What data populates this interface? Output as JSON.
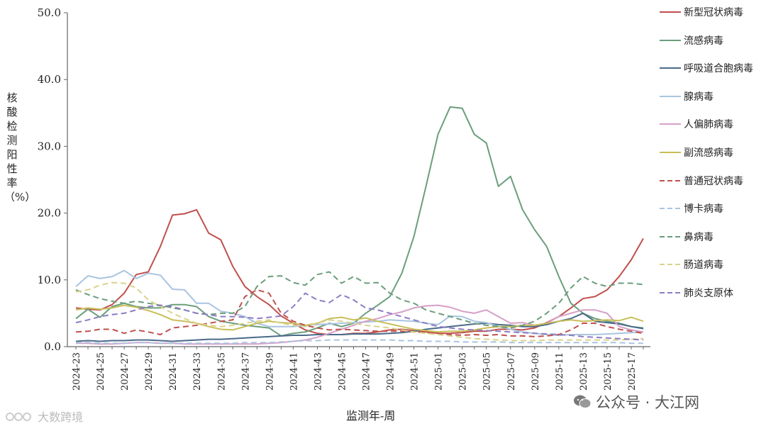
{
  "chart_data": {
    "type": "line",
    "title": "",
    "xlabel": "监测年-周",
    "ylabel": "核酸检测阳性率（%）",
    "ylim": [
      0,
      50
    ],
    "yticks": [
      "0.0",
      "10.0",
      "20.0",
      "30.0",
      "40.0",
      "50.0"
    ],
    "ytick_values": [
      0,
      10,
      20,
      30,
      40,
      50
    ],
    "xtick_labels": [
      "2024-23",
      "2024-25",
      "2024-27",
      "2024-29",
      "2024-31",
      "2024-33",
      "2024-35",
      "2024-37",
      "2024-39",
      "2024-41",
      "2024-43",
      "2024-45",
      "2024-47",
      "2024-49",
      "2024-51",
      "2025-01",
      "2025-03",
      "2025-05",
      "2025-07",
      "2025-09",
      "2025-11",
      "2025-13",
      "2025-15",
      "2025-17"
    ],
    "categories": [
      "2024-23",
      "2024-24",
      "2024-25",
      "2024-26",
      "2024-27",
      "2024-28",
      "2024-29",
      "2024-30",
      "2024-31",
      "2024-32",
      "2024-33",
      "2024-34",
      "2024-35",
      "2024-36",
      "2024-37",
      "2024-38",
      "2024-39",
      "2024-40",
      "2024-41",
      "2024-42",
      "2024-43",
      "2024-44",
      "2024-45",
      "2024-46",
      "2024-47",
      "2024-48",
      "2024-49",
      "2024-50",
      "2024-51",
      "2024-52",
      "2025-01",
      "2025-02",
      "2025-03",
      "2025-04",
      "2025-05",
      "2025-06",
      "2025-07",
      "2025-08",
      "2025-09",
      "2025-10",
      "2025-11",
      "2025-12",
      "2025-13",
      "2025-14",
      "2025-15",
      "2025-16",
      "2025-17",
      "2025-18"
    ],
    "grid": false,
    "legend_position": "right",
    "series": [
      {
        "name": "新型冠状病毒",
        "color": "#c0504d",
        "dash": false,
        "values": [
          5.8,
          5.6,
          5.5,
          6.3,
          8.0,
          10.8,
          11.2,
          15.0,
          19.7,
          19.9,
          20.5,
          17.0,
          16.0,
          12.0,
          9.0,
          7.5,
          6.3,
          4.6,
          3.5,
          2.5,
          2.0,
          1.8,
          1.8,
          2.0,
          2.0,
          2.2,
          2.5,
          2.6,
          2.4,
          2.2,
          2.0,
          2.0,
          2.1,
          2.3,
          2.3,
          2.6,
          2.6,
          2.5,
          2.8,
          3.6,
          4.5,
          5.8,
          7.2,
          7.5,
          8.5,
          10.5,
          13.0,
          16.2
        ]
      },
      {
        "name": "流感病毒",
        "color": "#6b9e7c",
        "dash": false,
        "values": [
          4.2,
          5.6,
          4.4,
          6.0,
          6.5,
          6.0,
          5.8,
          5.8,
          6.3,
          6.3,
          6.0,
          4.5,
          3.8,
          3.5,
          3.2,
          3.0,
          2.8,
          1.6,
          2.0,
          2.2,
          2.8,
          3.5,
          3.0,
          3.5,
          5.0,
          6.2,
          7.5,
          11.0,
          16.5,
          24.0,
          31.8,
          35.9,
          35.7,
          31.8,
          30.5,
          24.0,
          25.5,
          20.5,
          17.5,
          15.0,
          10.5,
          6.5,
          5.0,
          4.2,
          3.8,
          3.5,
          3.0,
          2.8
        ]
      },
      {
        "name": "呼吸道合胞病毒",
        "color": "#4a6a8a",
        "dash": false,
        "values": [
          0.8,
          0.9,
          0.8,
          0.9,
          0.9,
          1.0,
          1.0,
          0.9,
          0.8,
          0.9,
          1.0,
          1.1,
          1.1,
          1.2,
          1.3,
          1.4,
          1.5,
          1.6,
          1.7,
          1.7,
          1.8,
          1.8,
          1.8,
          1.9,
          1.9,
          1.9,
          2.0,
          2.1,
          2.3,
          2.6,
          2.8,
          3.0,
          3.2,
          3.4,
          3.5,
          3.3,
          3.2,
          3.0,
          3.0,
          3.3,
          3.8,
          4.2,
          5.0,
          3.8,
          3.6,
          3.4,
          3.0,
          2.7
        ]
      },
      {
        "name": "腺病毒",
        "color": "#a9c4e0",
        "dash": false,
        "values": [
          9.0,
          10.6,
          10.2,
          10.5,
          11.4,
          10.2,
          11.0,
          10.7,
          8.6,
          8.5,
          6.5,
          6.5,
          5.3,
          5.0,
          4.5,
          3.5,
          3.0,
          3.0,
          3.0,
          3.2,
          3.3,
          3.4,
          3.5,
          3.6,
          3.7,
          3.8,
          4.0,
          3.9,
          3.8,
          3.5,
          3.3,
          4.6,
          4.5,
          3.8,
          3.6,
          3.0,
          2.6,
          2.2,
          2.0,
          1.8,
          1.7,
          1.8,
          1.8,
          1.8,
          1.9,
          2.0,
          2.1,
          2.2
        ]
      },
      {
        "name": "人偏肺病毒",
        "color": "#d6a0c8",
        "dash": false,
        "values": [
          0.5,
          0.5,
          0.4,
          0.4,
          0.5,
          0.6,
          0.6,
          0.5,
          0.5,
          0.4,
          0.4,
          0.4,
          0.4,
          0.4,
          0.4,
          0.4,
          0.5,
          0.6,
          0.8,
          1.0,
          1.4,
          2.0,
          2.6,
          3.2,
          3.8,
          4.2,
          4.8,
          5.2,
          5.8,
          6.1,
          6.2,
          5.9,
          5.3,
          5.0,
          5.5,
          4.5,
          3.5,
          3.6,
          3.2,
          3.5,
          4.5,
          5.0,
          5.5,
          5.5,
          5.0,
          3.0,
          2.5,
          2.2
        ]
      },
      {
        "name": "副流感病毒",
        "color": "#c9be5a",
        "dash": false,
        "values": [
          5.5,
          5.8,
          5.6,
          5.8,
          6.2,
          5.9,
          5.4,
          4.8,
          4.0,
          3.8,
          3.5,
          3.0,
          2.6,
          2.5,
          3.0,
          3.5,
          3.8,
          3.6,
          3.5,
          3.2,
          3.5,
          4.2,
          4.4,
          4.0,
          4.3,
          3.8,
          3.4,
          3.0,
          2.6,
          2.4,
          2.2,
          2.3,
          2.3,
          2.5,
          2.8,
          3.0,
          3.0,
          3.2,
          3.2,
          3.5,
          3.8,
          4.0,
          3.8,
          3.9,
          4.0,
          3.9,
          4.4,
          3.8
        ]
      },
      {
        "name": "普通冠状病毒",
        "color": "#c0504d",
        "dash": true,
        "values": [
          2.2,
          2.3,
          2.6,
          2.6,
          2.0,
          2.5,
          2.2,
          1.8,
          2.8,
          3.0,
          3.2,
          3.5,
          3.8,
          4.0,
          7.5,
          8.5,
          8.0,
          5.0,
          3.8,
          3.2,
          2.8,
          2.5,
          2.6,
          2.5,
          2.4,
          2.3,
          2.3,
          2.3,
          2.2,
          2.1,
          2.0,
          1.8,
          1.7,
          1.8,
          1.7,
          1.8,
          1.6,
          1.6,
          1.5,
          1.6,
          1.8,
          2.5,
          3.5,
          3.5,
          3.0,
          2.6,
          2.3,
          2.0
        ]
      },
      {
        "name": "博卡病毒",
        "color": "#a9c4e0",
        "dash": true,
        "values": [
          0.6,
          0.6,
          0.5,
          0.5,
          0.5,
          0.6,
          0.6,
          0.5,
          0.5,
          0.5,
          0.5,
          0.5,
          0.5,
          0.5,
          0.6,
          0.6,
          0.6,
          0.7,
          0.8,
          0.9,
          0.9,
          1.0,
          1.0,
          1.0,
          1.0,
          1.0,
          1.0,
          0.9,
          0.9,
          0.8,
          0.8,
          0.8,
          0.7,
          0.7,
          0.7,
          0.7,
          0.6,
          0.6,
          0.6,
          0.6,
          0.6,
          0.6,
          0.6,
          0.6,
          0.6,
          0.6,
          0.5,
          0.5
        ]
      },
      {
        "name": "鼻病毒",
        "color": "#6b9e7c",
        "dash": true,
        "values": [
          8.5,
          7.8,
          7.2,
          6.8,
          6.5,
          6.8,
          6.5,
          6.2,
          5.8,
          5.5,
          5.0,
          4.8,
          5.0,
          5.0,
          6.0,
          9.0,
          10.5,
          10.6,
          9.6,
          9.2,
          10.8,
          11.2,
          9.5,
          10.5,
          9.5,
          9.6,
          8.0,
          7.0,
          6.5,
          5.5,
          5.0,
          4.5,
          4.0,
          3.5,
          3.2,
          3.0,
          2.8,
          3.2,
          3.8,
          5.0,
          6.5,
          8.8,
          10.5,
          9.5,
          9.0,
          9.5,
          9.5,
          9.3
        ]
      },
      {
        "name": "肠道病毒",
        "color": "#d9d38a",
        "dash": true,
        "values": [
          8.2,
          8.5,
          9.2,
          9.6,
          9.5,
          8.8,
          7.0,
          6.0,
          5.0,
          4.2,
          3.5,
          3.2,
          3.0,
          3.2,
          3.5,
          3.8,
          4.0,
          3.5,
          3.2,
          3.0,
          3.5,
          4.0,
          3.8,
          3.5,
          3.2,
          3.0,
          2.8,
          2.5,
          2.2,
          2.0,
          1.8,
          1.6,
          1.4,
          1.2,
          1.1,
          1.0,
          0.9,
          0.9,
          0.9,
          1.0,
          1.0,
          1.0,
          1.0,
          1.0,
          1.0,
          1.0,
          1.1,
          1.2
        ]
      },
      {
        "name": "肺炎支原体",
        "color": "#8e7cc3",
        "dash": true,
        "values": [
          3.6,
          4.0,
          4.5,
          4.8,
          5.0,
          5.5,
          6.0,
          6.2,
          6.0,
          5.5,
          5.0,
          4.8,
          4.5,
          4.5,
          4.4,
          4.2,
          4.4,
          4.6,
          6.0,
          8.0,
          7.0,
          6.6,
          7.8,
          7.0,
          5.8,
          5.5,
          5.0,
          4.5,
          4.0,
          3.5,
          3.0,
          2.8,
          2.6,
          2.5,
          2.4,
          2.3,
          2.2,
          2.1,
          2.0,
          1.9,
          1.8,
          1.7,
          1.5,
          1.4,
          1.3,
          1.2,
          1.1,
          1.0
        ]
      }
    ]
  },
  "watermarks": {
    "left": "大数跨境",
    "right": "公众号 · 大江网"
  }
}
